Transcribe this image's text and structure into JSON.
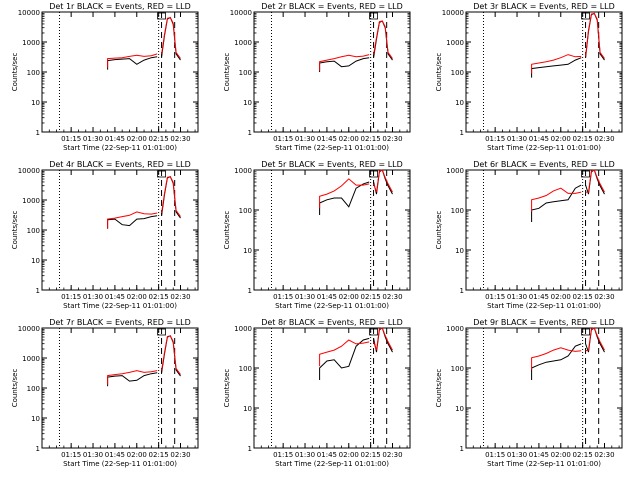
{
  "figure": {
    "xlabel": "Start Time (22-Sep-11 01:01:00)",
    "ylabel": "Counts/sec"
  },
  "colors": {
    "events": "#000000",
    "lld": "#ff0000",
    "axes": "#000000"
  },
  "chart_data": [
    {
      "type": "line",
      "title": "Det 1r BLACK = Events, RED = LLD",
      "xlabel": "Start Time (22-Sep-11 01:01:00)",
      "ylabel": "Counts/sec",
      "y_scale": "log",
      "ylim": [
        1,
        10000
      ],
      "xlim": [
        "00:55",
        "02:42"
      ],
      "x_ticks": [
        "01:15",
        "01:30",
        "01:45",
        "02:00",
        "02:15",
        "02:30"
      ],
      "y_ticks": [
        "1",
        "10",
        "100",
        "1000",
        "10000"
      ],
      "dotted_vlines": [
        "01:07",
        "02:15"
      ],
      "dashed_vlines": [
        "02:17",
        "02:26"
      ],
      "peak_y": 6500,
      "series": [
        {
          "name": "Events",
          "x": [
            "01:40",
            "01:45",
            "01:50",
            "01:55",
            "02:00",
            "02:05",
            "02:10",
            "02:14"
          ],
          "y": [
            240,
            260,
            270,
            280,
            180,
            250,
            300,
            320
          ]
        },
        {
          "name": "LLD",
          "x": [
            "01:40",
            "01:45",
            "01:50",
            "01:55",
            "02:00",
            "02:05",
            "02:10",
            "02:14"
          ],
          "y": [
            280,
            290,
            300,
            330,
            360,
            330,
            350,
            400
          ]
        }
      ]
    },
    {
      "type": "line",
      "title": "Det 2r BLACK = Events, RED = LLD",
      "xlabel": "Start Time (22-Sep-11 01:01:00)",
      "ylabel": "Counts/sec",
      "y_scale": "log",
      "ylim": [
        1,
        10000
      ],
      "xlim": [
        "00:55",
        "02:42"
      ],
      "x_ticks": [
        "01:15",
        "01:30",
        "01:45",
        "02:00",
        "02:15",
        "02:30"
      ],
      "y_ticks": [
        "1",
        "10",
        "100",
        "1000",
        "10000"
      ],
      "dotted_vlines": [
        "01:07",
        "02:15"
      ],
      "dashed_vlines": [
        "02:17",
        "02:26"
      ],
      "peak_y": 5000,
      "series": [
        {
          "name": "Events",
          "x": [
            "01:40",
            "01:45",
            "01:50",
            "01:55",
            "02:00",
            "02:05",
            "02:10",
            "02:14"
          ],
          "y": [
            200,
            220,
            230,
            150,
            160,
            230,
            280,
            300
          ]
        },
        {
          "name": "LLD",
          "x": [
            "01:40",
            "01:45",
            "01:50",
            "01:55",
            "02:00",
            "02:05",
            "02:10",
            "02:14"
          ],
          "y": [
            220,
            250,
            280,
            320,
            360,
            320,
            340,
            380
          ]
        }
      ]
    },
    {
      "type": "line",
      "title": "Det 3r BLACK = Events, RED = LLD",
      "xlabel": "Start Time (22-Sep-11 01:01:00)",
      "ylabel": "Counts/sec",
      "y_scale": "log",
      "ylim": [
        1,
        10000
      ],
      "xlim": [
        "00:55",
        "02:42"
      ],
      "x_ticks": [
        "01:15",
        "01:30",
        "01:45",
        "02:00",
        "02:15",
        "02:30"
      ],
      "y_ticks": [
        "1",
        "10",
        "100",
        "1000",
        "10000"
      ],
      "dotted_vlines": [
        "01:07",
        "02:15"
      ],
      "dashed_vlines": [
        "02:17",
        "02:26"
      ],
      "peak_y": 9000,
      "series": [
        {
          "name": "Events",
          "x": [
            "01:40",
            "01:45",
            "01:50",
            "01:55",
            "02:00",
            "02:05",
            "02:10",
            "02:14"
          ],
          "y": [
            130,
            140,
            150,
            160,
            170,
            180,
            250,
            300
          ]
        },
        {
          "name": "LLD",
          "x": [
            "01:40",
            "01:45",
            "01:50",
            "01:55",
            "02:00",
            "02:05",
            "02:10",
            "02:14"
          ],
          "y": [
            180,
            200,
            220,
            250,
            300,
            380,
            320,
            330
          ]
        }
      ]
    },
    {
      "type": "line",
      "title": "Det 4r BLACK = Events, RED = LLD",
      "xlabel": "Start Time (22-Sep-11 01:01:00)",
      "ylabel": "Counts/sec",
      "y_scale": "log",
      "ylim": [
        1,
        10000
      ],
      "xlim": [
        "00:55",
        "02:42"
      ],
      "x_ticks": [
        "01:15",
        "01:30",
        "01:45",
        "02:00",
        "02:15",
        "02:30"
      ],
      "y_ticks": [
        "1",
        "10",
        "100",
        "1000",
        "10000"
      ],
      "dotted_vlines": [
        "01:07",
        "02:15"
      ],
      "dashed_vlines": [
        "02:17",
        "02:26"
      ],
      "peak_y": 6000,
      "series": [
        {
          "name": "Events",
          "x": [
            "01:40",
            "01:45",
            "01:50",
            "01:55",
            "02:00",
            "02:05",
            "02:10",
            "02:14"
          ],
          "y": [
            220,
            230,
            150,
            140,
            230,
            240,
            280,
            300
          ]
        },
        {
          "name": "LLD",
          "x": [
            "01:40",
            "01:45",
            "01:50",
            "01:55",
            "02:00",
            "02:05",
            "02:10",
            "02:14"
          ],
          "y": [
            230,
            250,
            280,
            310,
            400,
            350,
            340,
            370
          ]
        }
      ]
    },
    {
      "type": "line",
      "title": "Det 5r BLACK = Events, RED = LLD",
      "xlabel": "Start Time (22-Sep-11 01:01:00)",
      "ylabel": "Counts/sec",
      "y_scale": "log",
      "ylim": [
        1,
        1000
      ],
      "xlim": [
        "00:55",
        "02:42"
      ],
      "x_ticks": [
        "01:15",
        "01:30",
        "01:45",
        "02:00",
        "02:15",
        "02:30"
      ],
      "y_ticks": [
        "1",
        "10",
        "100",
        "1000"
      ],
      "dotted_vlines": [
        "01:07",
        "02:15"
      ],
      "dashed_vlines": [
        "02:17",
        "02:26"
      ],
      "peak_y": 1000,
      "series": [
        {
          "name": "Events",
          "x": [
            "01:40",
            "01:45",
            "01:50",
            "01:55",
            "02:00",
            "02:05",
            "02:10",
            "02:14"
          ],
          "y": [
            150,
            180,
            200,
            200,
            120,
            350,
            450,
            500
          ]
        },
        {
          "name": "LLD",
          "x": [
            "01:40",
            "01:45",
            "01:50",
            "01:55",
            "02:00",
            "02:05",
            "02:10",
            "02:14"
          ],
          "y": [
            220,
            250,
            300,
            400,
            600,
            420,
            420,
            450
          ]
        }
      ]
    },
    {
      "type": "line",
      "title": "Det 6r BLACK = Events, RED = LLD",
      "xlabel": "Start Time (22-Sep-11 01:01:00)",
      "ylabel": "Counts/sec",
      "y_scale": "log",
      "ylim": [
        1,
        1000
      ],
      "xlim": [
        "00:55",
        "02:42"
      ],
      "x_ticks": [
        "01:15",
        "01:30",
        "01:45",
        "02:00",
        "02:15",
        "02:30"
      ],
      "y_ticks": [
        "1",
        "10",
        "100",
        "1000"
      ],
      "dotted_vlines": [
        "01:07",
        "02:15"
      ],
      "dashed_vlines": [
        "02:17",
        "02:26"
      ],
      "peak_y": 1000,
      "series": [
        {
          "name": "Events",
          "x": [
            "01:40",
            "01:45",
            "01:50",
            "01:55",
            "02:00",
            "02:05",
            "02:10",
            "02:14"
          ],
          "y": [
            100,
            110,
            150,
            160,
            170,
            180,
            350,
            420
          ]
        },
        {
          "name": "LLD",
          "x": [
            "01:40",
            "01:45",
            "01:50",
            "01:55",
            "02:00",
            "02:05",
            "02:10",
            "02:14"
          ],
          "y": [
            180,
            200,
            230,
            300,
            350,
            260,
            260,
            280
          ]
        }
      ]
    },
    {
      "type": "line",
      "title": "Det 7r BLACK = Events, RED = LLD",
      "xlabel": "Start Time (22-Sep-11 01:01:00)",
      "ylabel": "Counts/sec",
      "y_scale": "log",
      "ylim": [
        1,
        10000
      ],
      "xlim": [
        "00:55",
        "02:42"
      ],
      "x_ticks": [
        "01:15",
        "01:30",
        "01:45",
        "02:00",
        "02:15",
        "02:30"
      ],
      "y_ticks": [
        "1",
        "10",
        "100",
        "1000",
        "10000"
      ],
      "dotted_vlines": [
        "01:07",
        "02:15"
      ],
      "dashed_vlines": [
        "02:17",
        "02:26"
      ],
      "peak_y": 5500,
      "series": [
        {
          "name": "Events",
          "x": [
            "01:40",
            "01:45",
            "01:50",
            "01:55",
            "02:00",
            "02:05",
            "02:10",
            "02:14"
          ],
          "y": [
            230,
            250,
            260,
            170,
            180,
            260,
            300,
            320
          ]
        },
        {
          "name": "LLD",
          "x": [
            "01:40",
            "01:45",
            "01:50",
            "01:55",
            "02:00",
            "02:05",
            "02:10",
            "02:14"
          ],
          "y": [
            260,
            280,
            300,
            330,
            380,
            330,
            350,
            380
          ]
        }
      ]
    },
    {
      "type": "line",
      "title": "Det 8r BLACK = Events, RED = LLD",
      "xlabel": "Start Time (22-Sep-11 01:01:00)",
      "ylabel": "Counts/sec",
      "y_scale": "log",
      "ylim": [
        1,
        1000
      ],
      "xlim": [
        "00:55",
        "02:42"
      ],
      "x_ticks": [
        "01:15",
        "01:30",
        "01:45",
        "02:00",
        "02:15",
        "02:30"
      ],
      "y_ticks": [
        "1",
        "10",
        "100",
        "1000"
      ],
      "dotted_vlines": [
        "01:07",
        "02:15"
      ],
      "dashed_vlines": [
        "02:17",
        "02:26"
      ],
      "peak_y": 1000,
      "series": [
        {
          "name": "Events",
          "x": [
            "01:40",
            "01:45",
            "01:50",
            "01:55",
            "02:00",
            "02:05",
            "02:10",
            "02:14"
          ],
          "y": [
            100,
            150,
            160,
            100,
            110,
            350,
            500,
            550
          ]
        },
        {
          "name": "LLD",
          "x": [
            "01:40",
            "01:45",
            "01:50",
            "01:55",
            "02:00",
            "02:05",
            "02:10",
            "02:14"
          ],
          "y": [
            220,
            250,
            280,
            350,
            500,
            400,
            420,
            450
          ]
        }
      ]
    },
    {
      "type": "line",
      "title": "Det 9r BLACK = Events, RED = LLD",
      "xlabel": "Start Time (22-Sep-11 01:01:00)",
      "ylabel": "Counts/sec",
      "y_scale": "log",
      "ylim": [
        1,
        1000
      ],
      "xlim": [
        "00:55",
        "02:42"
      ],
      "x_ticks": [
        "01:15",
        "01:30",
        "01:45",
        "02:00",
        "02:15",
        "02:30"
      ],
      "y_ticks": [
        "1",
        "10",
        "100",
        "1000"
      ],
      "dotted_vlines": [
        "01:07",
        "02:15"
      ],
      "dashed_vlines": [
        "02:17",
        "02:26"
      ],
      "peak_y": 1000,
      "series": [
        {
          "name": "Events",
          "x": [
            "01:40",
            "01:45",
            "01:50",
            "01:55",
            "02:00",
            "02:05",
            "02:10",
            "02:14"
          ],
          "y": [
            100,
            120,
            140,
            150,
            160,
            200,
            350,
            400
          ]
        },
        {
          "name": "LLD",
          "x": [
            "01:40",
            "01:45",
            "01:50",
            "01:55",
            "02:00",
            "02:05",
            "02:10",
            "02:14"
          ],
          "y": [
            180,
            200,
            230,
            280,
            320,
            280,
            260,
            270
          ]
        }
      ]
    }
  ]
}
